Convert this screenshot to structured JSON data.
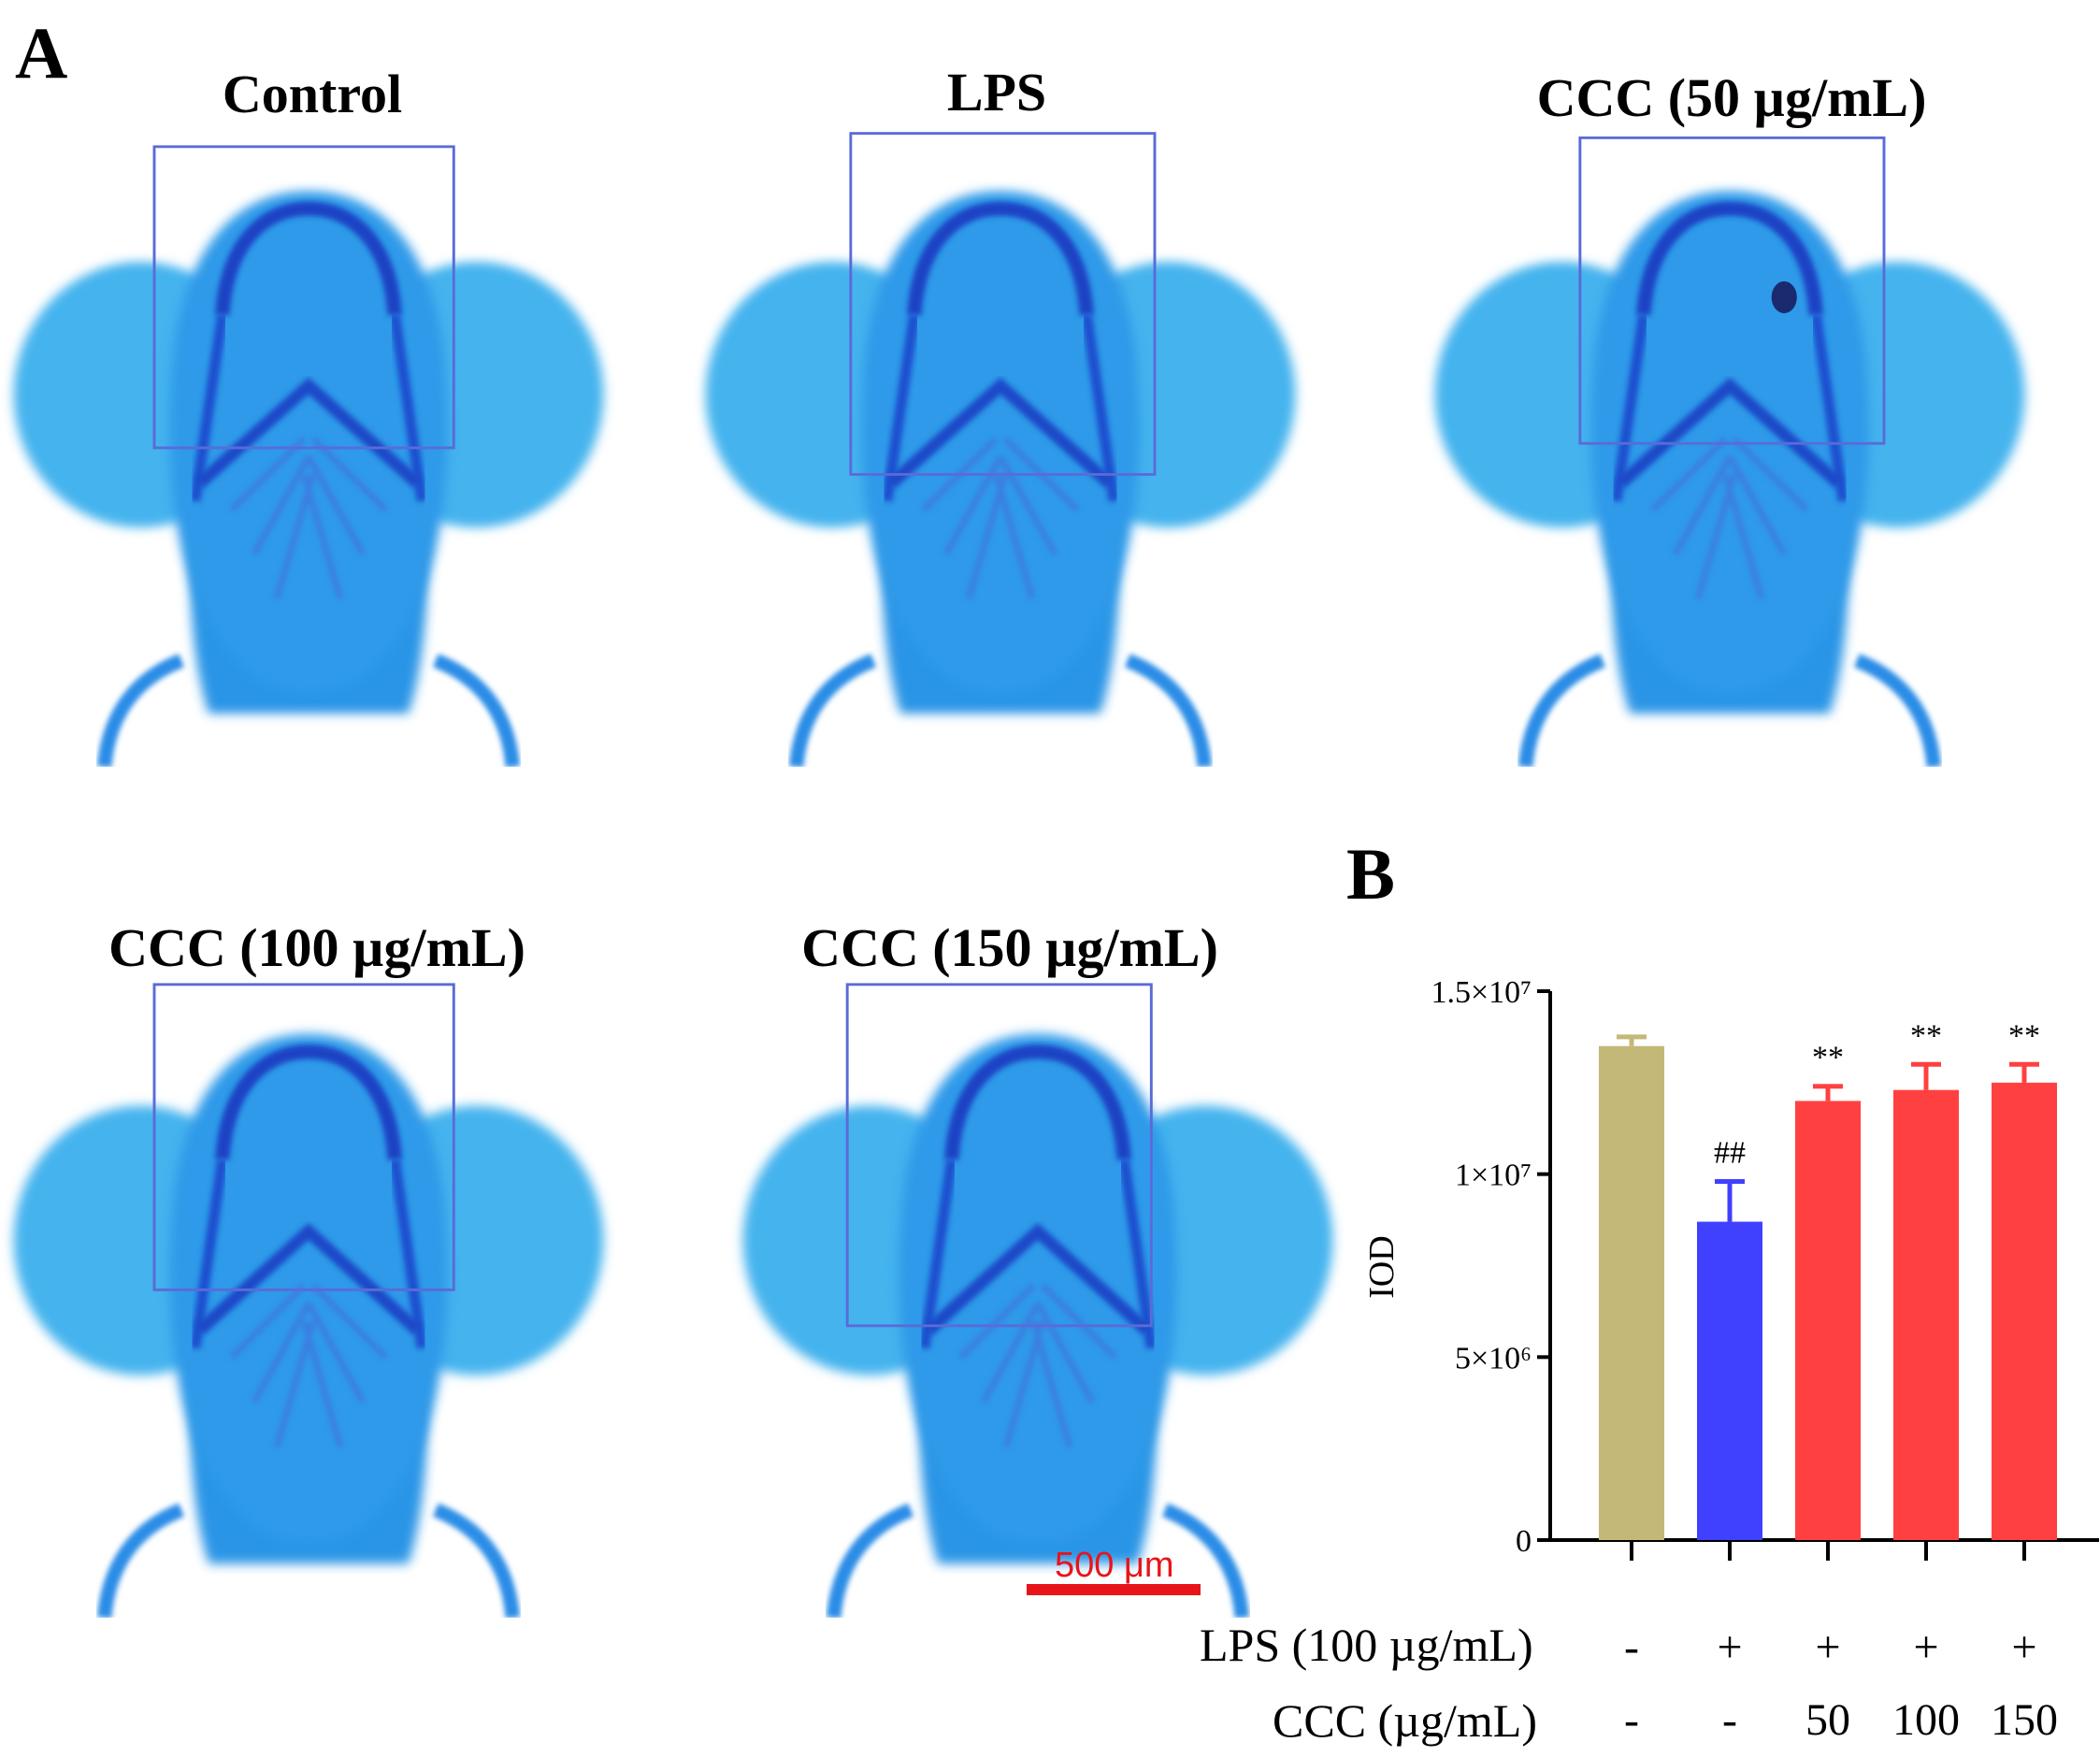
{
  "panel_a": {
    "label": "A",
    "images": [
      {
        "title": "Control"
      },
      {
        "title": "LPS"
      },
      {
        "title": "CCC (50 µg/mL)"
      },
      {
        "title": "CCC (100 µg/mL)"
      },
      {
        "title": "CCC (150 µg/mL)"
      }
    ],
    "scale_bar": {
      "label": "500 μm",
      "color": "#e8141a"
    },
    "colors": {
      "stain_light": "#4fb6ee",
      "stain_mid": "#1f8fe3",
      "stain_dark": "#1a3fbf",
      "roi_box": "#5a6bd8"
    }
  },
  "panel_b": {
    "label": "B",
    "chart_data": {
      "type": "bar",
      "ylabel": "IOD",
      "ylim": [
        0,
        15000000
      ],
      "yticks": [
        {
          "value": 0,
          "label": "0"
        },
        {
          "value": 5000000,
          "label": "5×10⁶"
        },
        {
          "value": 10000000,
          "label": "1×10⁷"
        },
        {
          "value": 15000000,
          "label": "1.5×10⁷"
        }
      ],
      "categories": [
        "Control",
        "LPS",
        "CCC 50",
        "CCC 100",
        "CCC 150"
      ],
      "values": [
        13500000,
        8700000,
        12000000,
        12300000,
        12500000
      ],
      "errors": [
        250000,
        1100000,
        400000,
        700000,
        500000
      ],
      "colors": [
        "#c4b878",
        "#4040ff",
        "#ff4040",
        "#ff4040",
        "#ff4040"
      ],
      "annotations": [
        "",
        "##",
        "**",
        "**",
        "**"
      ]
    },
    "conditions": [
      {
        "label": "LPS (100 µg/mL)",
        "values": [
          "-",
          "+",
          "+",
          "+",
          "+"
        ]
      },
      {
        "label": "CCC (µg/mL)",
        "values": [
          "-",
          "-",
          "50",
          "100",
          "150"
        ]
      }
    ]
  }
}
